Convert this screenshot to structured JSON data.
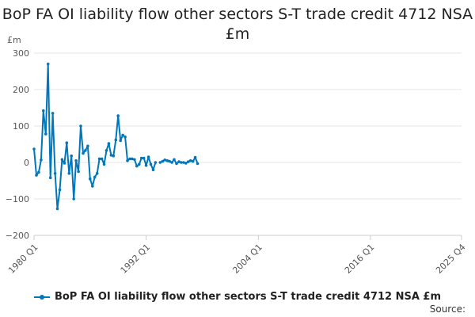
{
  "chart_data": {
    "type": "line",
    "title": "BoP FA OI liability flow other sectors S-T trade credit 4712 NSA £m",
    "unit": "£m",
    "ylim": [
      -200,
      300
    ],
    "yticks": [
      300,
      200,
      100,
      0,
      -100,
      -200
    ],
    "xticks": [
      "1980 Q1",
      "1992 Q1",
      "2004 Q1",
      "2016 Q1",
      "2025 Q4"
    ],
    "grid": "horizontal",
    "legend_position": "bottom",
    "source_label": "Source:",
    "colors": {
      "series": "#0077bb",
      "grid": "#e6e6e6",
      "axis": "#cccccc"
    },
    "series": [
      {
        "name": "BoP FA OI liability flow other sectors S-T trade credit 4712 NSA £m",
        "segments": [
          {
            "start": "1980 Q1",
            "values": [
              37,
              -35,
              -27,
              7,
              142,
              78,
              270,
              -42,
              135,
              -30,
              -127,
              -75,
              8,
              -2,
              54,
              -30,
              18,
              -100,
              5,
              -25,
              100,
              25,
              33,
              45,
              -45,
              -65,
              -40,
              -30,
              10,
              10,
              -5,
              33,
              52,
              20,
              18,
              62,
              128,
              60,
              75,
              70,
              5,
              10,
              10,
              8,
              -10,
              -5,
              12,
              12,
              -8,
              15,
              -5,
              -20,
              0
            ]
          },
          {
            "start": "1993 Q3",
            "values": [
              0,
              3,
              7,
              5,
              3,
              0,
              8,
              -3,
              2,
              0,
              0,
              -2,
              2,
              5,
              3,
              14,
              -3
            ]
          }
        ]
      }
    ]
  }
}
